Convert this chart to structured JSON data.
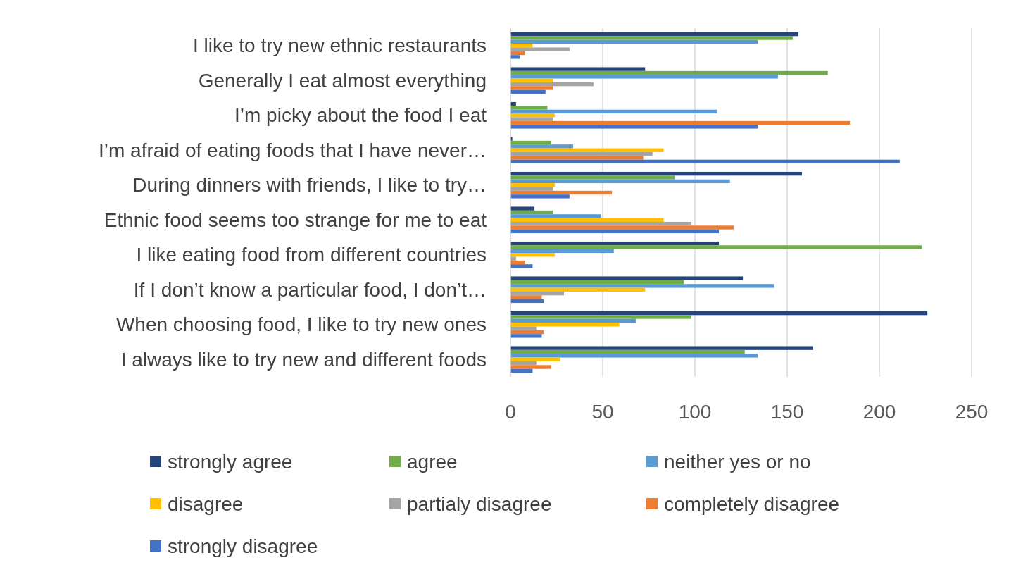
{
  "chart_data": {
    "type": "bar",
    "orientation": "horizontal",
    "categories": [
      "I like to try new ethnic restaurants",
      "Generally I eat almost everything",
      "I’m picky about the food I eat",
      "I’m afraid of eating foods that I have never…",
      "During dinners with friends, I like to try…",
      "Ethnic food seems too strange for me to eat",
      "I like eating food from different countries",
      "If I don’t know a particular food, I don’t…",
      "When choosing food, I like to try new ones",
      "I always like to try new and different foods"
    ],
    "series": [
      {
        "name": "strongly agree",
        "color": "#264478",
        "values": [
          156,
          73,
          3,
          1,
          158,
          13,
          113,
          126,
          226,
          164
        ]
      },
      {
        "name": "agree",
        "color": "#70ad47",
        "values": [
          153,
          172,
          20,
          22,
          89,
          23,
          223,
          94,
          98,
          127
        ]
      },
      {
        "name": "neither yes or no",
        "color": "#5b9bd5",
        "values": [
          134,
          145,
          112,
          34,
          119,
          49,
          56,
          143,
          68,
          134
        ]
      },
      {
        "name": "disagree",
        "color": "#ffc000",
        "values": [
          12,
          23,
          24,
          83,
          24,
          83,
          24,
          73,
          59,
          27
        ]
      },
      {
        "name": "partialy disagree",
        "color": "#a5a5a5",
        "values": [
          32,
          45,
          23,
          77,
          23,
          98,
          3,
          29,
          14,
          14
        ]
      },
      {
        "name": "completely disagree",
        "color": "#ed7d31",
        "values": [
          8,
          23,
          184,
          72,
          55,
          121,
          8,
          17,
          18,
          22
        ]
      },
      {
        "name": "strongly disagree",
        "color": "#4472c4",
        "values": [
          5,
          19,
          134,
          211,
          32,
          113,
          12,
          18,
          17,
          12
        ]
      }
    ],
    "xlim": [
      0,
      250
    ],
    "xticks": [
      0,
      50,
      100,
      150,
      200,
      250
    ],
    "grid": "x",
    "legend": "bottom"
  }
}
